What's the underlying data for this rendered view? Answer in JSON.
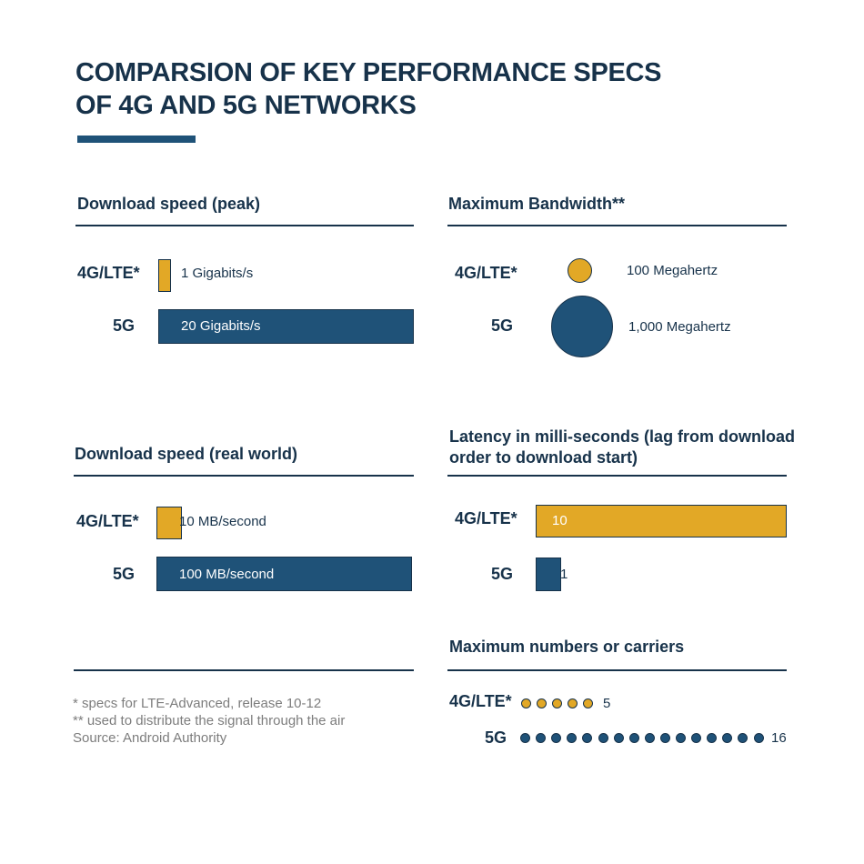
{
  "title": {
    "line1": "COMPARSION OF KEY PERFORMANCE SPECS",
    "line2": "OF 4G AND 5G NETWORKS"
  },
  "colors": {
    "gold": "#e2a826",
    "blue": "#1f5278",
    "navy": "#17324a",
    "footnote": "#7d7d7d"
  },
  "chart_data": [
    {
      "type": "bar",
      "title": "Download speed (peak)",
      "categories": [
        "4G/LTE*",
        "5G"
      ],
      "values": [
        1,
        20
      ],
      "value_labels": [
        "1 Gigabits/s",
        "20 Gigabits/s"
      ],
      "unit": "Gigabits/s"
    },
    {
      "type": "bubble",
      "title": "Maximum Bandwidth**",
      "categories": [
        "4G/LTE*",
        "5G"
      ],
      "values": [
        100,
        1000
      ],
      "value_labels": [
        "100 Megahertz",
        "1,000 Megahertz"
      ],
      "unit": "Megahertz"
    },
    {
      "type": "bar",
      "title": "Download speed (real world)",
      "categories": [
        "4G/LTE*",
        "5G"
      ],
      "values": [
        10,
        100
      ],
      "value_labels": [
        "10 MB/second",
        "100 MB/second"
      ],
      "unit": "MB/second"
    },
    {
      "type": "bar",
      "title_line1": "Latency in milli-seconds (lag from download",
      "title_line2": "order to download start)",
      "categories": [
        "4G/LTE*",
        "5G"
      ],
      "values": [
        10,
        1
      ],
      "value_labels": [
        "10",
        "1"
      ],
      "unit": "milli-seconds"
    },
    {
      "type": "dots",
      "title": "Maximum numbers or carriers",
      "categories": [
        "4G/LTE*",
        "5G"
      ],
      "values": [
        5,
        16
      ],
      "value_labels": [
        "5",
        "16"
      ]
    }
  ],
  "footnotes": {
    "line1": "* specs for LTE-Advanced, release 10-12",
    "line2": "** used to distribute the signal through the air",
    "line3": "Source: Android Authority"
  }
}
